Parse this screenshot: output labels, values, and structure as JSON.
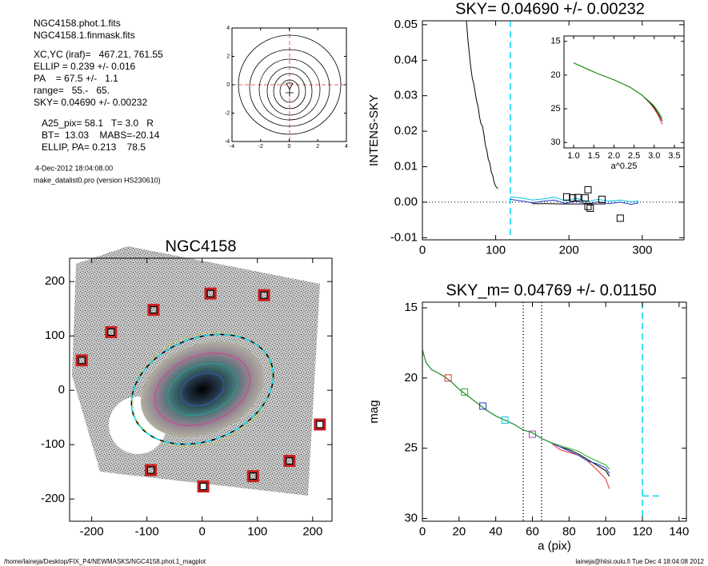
{
  "header": {
    "lines": [
      "NGC4158.phot.1.fits",
      "NGC4158.1.finmask.fits",
      "XC,YC (iraf)=   467.21, 761.55",
      "ELLIP = 0.239 +/- 0.016",
      "PA    = 67.5 +/-   1.1",
      "range=   55.-   65.",
      "SKY= 0.04690 +/- 0.00232",
      "A25_pix= 58.1   T= 3.0   R",
      "BT=  13.03    MABS=-20.14",
      "ELLIP, PA= 0.213    78.5"
    ],
    "date": "4-Dec-2012 18:04:08.00",
    "program": "make_datalist0.pro (version HS230610)"
  },
  "footer": {
    "path": "/home/laineja/Desktop/FIX_P4/NEWMASKS/NGC4158.phot.1_magplot",
    "user": "laineja@hiisi.oulu.fi  Tue Dec  4 18:04:08 2012"
  },
  "chart_data": [
    {
      "type": "contour",
      "xlim": [
        -4,
        4
      ],
      "ylim": [
        -4,
        4
      ],
      "xticks": [
        -4,
        -2,
        0,
        2,
        4
      ],
      "yticks": [
        -4,
        -2,
        0,
        2,
        4
      ]
    },
    {
      "type": "line",
      "title": "SKY= 0.04690 +/- 0.00232",
      "ylabel": "INTENS-SKY",
      "xlim": [
        0,
        357
      ],
      "ylim": [
        -0.0106,
        0.0511
      ],
      "xticks": [
        0,
        100,
        200,
        300
      ],
      "yticks": [
        -0.01,
        {
          "value": 0,
          "label": "0.00"
        },
        0.01,
        0.02,
        0.03,
        0.04,
        0.05
      ],
      "series": [
        {
          "color": "#000000",
          "x": [
            60,
            62,
            64,
            66,
            68,
            70,
            72,
            74,
            76,
            78,
            80,
            82,
            84,
            86,
            88,
            90,
            92,
            94,
            96,
            98,
            100,
            103
          ],
          "values": [
            0.0511,
            0.046,
            0.042,
            0.038,
            0.035,
            0.0335,
            0.031,
            0.0285,
            0.027,
            0.024,
            0.022,
            0.0215,
            0.019,
            0.016,
            0.0145,
            0.012,
            0.011,
            0.0085,
            0.0075,
            0.0055,
            0.0045,
            0.0038
          ]
        },
        {
          "color": "#00c8e0",
          "x": [
            120,
            135,
            150,
            165,
            180,
            195,
            210,
            225,
            240,
            255,
            270,
            285,
            295
          ],
          "values": [
            0.0015,
            0.0012,
            0.0006,
            0.0009,
            0.0014,
            0.0004,
            0.0011,
            0.0002,
            0.0008,
            0.0003,
            0.0006,
            0.0001,
            0.0004
          ]
        },
        {
          "color": "#1e3cc8",
          "x": [
            120,
            135,
            150,
            165,
            180,
            195,
            210,
            225,
            240,
            255,
            270,
            285,
            295
          ],
          "values": [
            0.0008,
            0.0004,
            -0.0002,
            0.0003,
            0.0006,
            -0.0003,
            0.0003,
            -0.0005,
            0.0001,
            -0.0004,
            0.0,
            -0.0006,
            -0.0002
          ]
        },
        {
          "color": "#000000",
          "x": [
            150,
            170,
            190,
            210,
            230,
            250
          ],
          "values": [
            -0.0004,
            -0.0004,
            -0.0005,
            -0.0005,
            -0.0005,
            -0.0005
          ]
        }
      ],
      "points": {
        "x": [
          197,
          205,
          212,
          222,
          226,
          226,
          229,
          245,
          270
        ],
        "values": [
          0.0015,
          0.0012,
          0.0013,
          0.0012,
          0.0035,
          -0.0012,
          -0.0017,
          0.0008,
          -0.0045
        ],
        "colors": [
          "#000000",
          "#000000",
          "#000000",
          "#000000",
          "#000000",
          "#000000",
          "#000000",
          "#000000",
          "#000000"
        ]
      },
      "vlines": [
        {
          "x": 120,
          "color": "#00d8f0",
          "style": "dashed"
        }
      ],
      "hlines": [
        {
          "y": 0,
          "color": "#000000",
          "style": "dotted"
        }
      ]
    },
    {
      "type": "line",
      "xlabel": "a^0.25",
      "xlim": [
        0.76,
        3.74
      ],
      "ylim": [
        30.8,
        14.2
      ],
      "xticks": [
        {
          "value": 1,
          "label": "1.0"
        },
        1.5,
        {
          "value": 2,
          "label": "2.0"
        },
        2.5,
        {
          "value": 3,
          "label": "3.0"
        },
        3.5
      ],
      "yticks": [
        15,
        20,
        25,
        30
      ],
      "series": [
        {
          "color": "#e03030",
          "x": [
            1.0,
            1.3,
            1.6,
            2.0,
            2.4,
            2.7,
            2.9,
            3.0,
            3.1,
            3.2
          ],
          "values": [
            18.2,
            19.0,
            19.8,
            20.7,
            21.8,
            23.0,
            24.2,
            25.0,
            26.0,
            27.3
          ]
        },
        {
          "color": "#000000",
          "x": [
            1.0,
            1.3,
            1.6,
            2.0,
            2.4,
            2.7,
            2.9,
            3.0,
            3.1,
            3.2
          ],
          "values": [
            18.2,
            19.0,
            19.8,
            20.7,
            21.8,
            23.0,
            24.1,
            24.8,
            25.7,
            26.8
          ]
        },
        {
          "color": "#20b020",
          "x": [
            1.0,
            1.3,
            1.6,
            2.0,
            2.4,
            2.7,
            2.9,
            3.0,
            3.1,
            3.2
          ],
          "values": [
            18.2,
            19.0,
            19.8,
            20.7,
            21.8,
            23.0,
            24.0,
            24.6,
            25.4,
            26.4
          ]
        }
      ]
    },
    {
      "type": "image",
      "title": "NGC4158",
      "xlim": [
        -240,
        235
      ],
      "ylim": [
        -241,
        243
      ],
      "xticks": [
        -200,
        -100,
        0,
        100,
        200
      ],
      "yticks": [
        -200,
        -100,
        0,
        100,
        200
      ],
      "points": {
        "x": [
          -218,
          -165,
          -88,
          15,
          112,
          -93,
          2,
          92,
          158,
          213
        ],
        "values": [
          55,
          107,
          148,
          178,
          175,
          -147,
          -177,
          -158,
          -130,
          -63
        ],
        "color": "#c81e1e"
      }
    },
    {
      "type": "line",
      "title": "SKY_m=  0.04769 +/- 0.01150",
      "xlabel": "a (pix)",
      "ylabel": "mag",
      "xlim": [
        0,
        144
      ],
      "ylim": [
        30.2,
        14.6
      ],
      "xticks": [
        0,
        20,
        40,
        60,
        80,
        100,
        120,
        140
      ],
      "yticks": [
        15,
        20,
        25,
        30
      ],
      "series": [
        {
          "color": "#e03030",
          "x": [
            0,
            2,
            5,
            8,
            12,
            16,
            20,
            25,
            30,
            35,
            40,
            45,
            50,
            55,
            60,
            65,
            70,
            75,
            80,
            85,
            90,
            95,
            100,
            102
          ],
          "values": [
            18.0,
            18.9,
            19.4,
            19.6,
            19.9,
            20.3,
            20.8,
            21.3,
            21.8,
            22.3,
            22.7,
            23.0,
            23.3,
            23.7,
            23.9,
            24.3,
            24.6,
            25.1,
            25.3,
            25.5,
            25.9,
            26.5,
            27.2,
            27.9
          ]
        },
        {
          "color": "#000000",
          "x": [
            0,
            2,
            5,
            8,
            12,
            16,
            20,
            25,
            30,
            35,
            40,
            45,
            50,
            55,
            60,
            65,
            70,
            75,
            80,
            85,
            90,
            95,
            100,
            102
          ],
          "values": [
            18.0,
            18.9,
            19.4,
            19.6,
            19.9,
            20.3,
            20.8,
            21.3,
            21.8,
            22.3,
            22.7,
            23.0,
            23.3,
            23.7,
            23.9,
            24.3,
            24.6,
            24.9,
            25.1,
            25.4,
            25.8,
            26.2,
            26.6,
            27.0
          ]
        },
        {
          "color": "#1e3cc8",
          "x": [
            0,
            2,
            5,
            8,
            12,
            16,
            20,
            25,
            30,
            35,
            40,
            45,
            50,
            55,
            60,
            65,
            70,
            75,
            80,
            85,
            90,
            95,
            100,
            102
          ],
          "values": [
            18.0,
            18.9,
            19.4,
            19.6,
            19.9,
            20.3,
            20.8,
            21.3,
            21.8,
            22.3,
            22.7,
            23.0,
            23.3,
            23.7,
            23.9,
            24.3,
            24.6,
            24.9,
            25.2,
            25.5,
            25.9,
            26.1,
            26.4,
            26.8
          ]
        },
        {
          "color": "#20b020",
          "x": [
            0,
            2,
            5,
            8,
            12,
            16,
            20,
            25,
            30,
            35,
            40,
            45,
            50,
            55,
            60,
            65,
            70,
            75,
            80,
            85,
            90,
            95,
            100,
            102
          ],
          "values": [
            18.0,
            18.9,
            19.4,
            19.6,
            19.9,
            20.3,
            20.8,
            21.3,
            21.8,
            22.3,
            22.7,
            23.0,
            23.3,
            23.7,
            23.9,
            24.3,
            24.6,
            24.8,
            25.0,
            25.2,
            25.6,
            25.9,
            26.2,
            26.5
          ]
        }
      ],
      "points": {
        "x": [
          14,
          23,
          33,
          45,
          60
        ],
        "values": [
          20,
          21,
          22,
          23,
          24
        ],
        "colors": [
          "#e03030",
          "#20b020",
          "#1e3cc8",
          "#00c8e0",
          "#b040c0"
        ]
      },
      "vlines": [
        {
          "x": 55,
          "color": "#000000",
          "style": "dotted"
        },
        {
          "x": 65,
          "color": "#000000",
          "style": "dotted"
        },
        {
          "x": 120,
          "color": "#00d8f0",
          "style": "dashed"
        }
      ],
      "segments": [
        {
          "x": [
            120,
            130
          ],
          "y": 28.4,
          "color": "#00d8f0",
          "style": "dashed"
        }
      ]
    }
  ]
}
